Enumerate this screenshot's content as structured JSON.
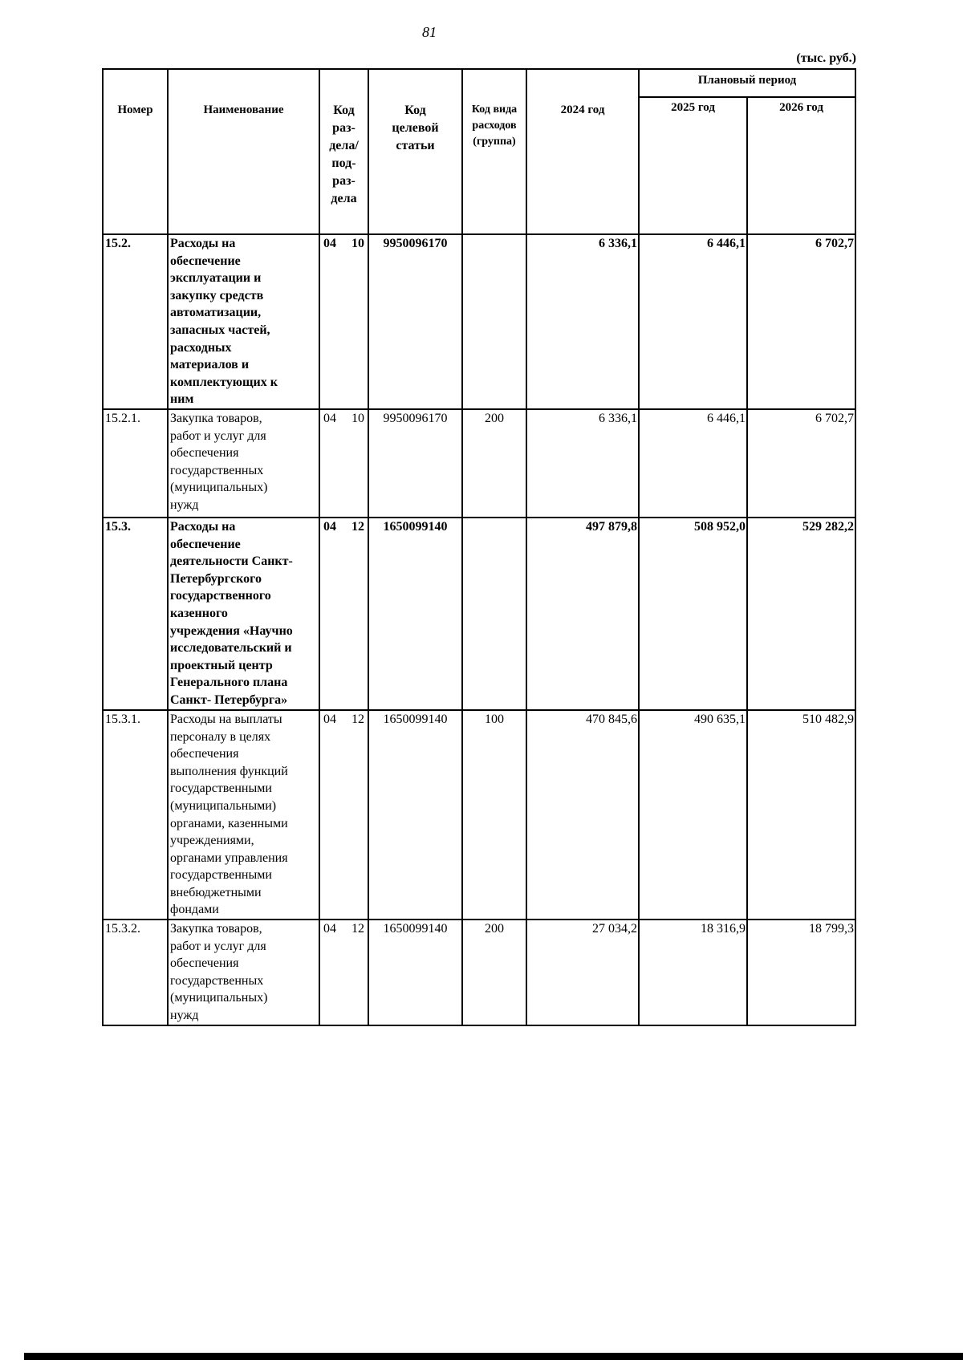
{
  "page_number": "81",
  "units": "(тыс. руб.)",
  "header": {
    "number": "Номер",
    "name": "Наименование",
    "section_code": "Код\nраз-\nдела/\nпод-\nраз-\nдела",
    "target_code": "Код\nцелевой\nстатьи",
    "expense_type": "Код вида\nрасходов\n(группа)",
    "year_2024": "2024 год",
    "planning_period": "Плановый период",
    "year_2025": "2025 год",
    "year_2026": "2026 год"
  },
  "rows": [
    {
      "number": "15.2.",
      "name": "Расходы на\nобеспечение\nэксплуатации и\nзакупку средств\nавтоматизации,\nзапасных частей,\nрасходных\nматериалов и\nкомплектующих к\nним",
      "section": "04",
      "subsection": "10",
      "target": "9950096170",
      "type": "",
      "y2024": "6 336,1",
      "y2025": "6 446,1",
      "y2026": "6 702,7",
      "bold": true
    },
    {
      "number": "15.2.1.",
      "name": "Закупка товаров,\nработ и услуг для\nобеспечения\nгосударственных\n(муниципальных)\nнужд",
      "section": "04",
      "subsection": "10",
      "target": "9950096170",
      "type": "200",
      "y2024": "6 336,1",
      "y2025": "6 446,1",
      "y2026": "6 702,7",
      "bold": false
    },
    {
      "number": "15.3.",
      "name": "Расходы на\nобеспечение\nдеятельности Санкт-\nПетербургского\nгосударственного\nказенного\nучреждения «Научно\nисследовательский и\nпроектный центр\nГенерального плана\nСанкт- Петербурга»",
      "section": "04",
      "subsection": "12",
      "target": "1650099140",
      "type": "",
      "y2024": "497 879,8",
      "y2025": "508 952,0",
      "y2026": "529 282,2",
      "bold": true
    },
    {
      "number": "15.3.1.",
      "name": "Расходы на выплаты\nперсоналу в целях\nобеспечения\nвыполнения функций\nгосударственными\n(муниципальными)\nорганами, казенными\nучреждениями,\nорганами управления\nгосударственными\nвнебюджетными\nфондами",
      "section": "04",
      "subsection": "12",
      "target": "1650099140",
      "type": "100",
      "y2024": "470 845,6",
      "y2025": "490 635,1",
      "y2026": "510 482,9",
      "bold": false
    },
    {
      "number": "15.3.2.",
      "name": "Закупка товаров,\nработ и услуг для\nобеспечения\nгосударственных\n(муниципальных)\nнужд",
      "section": "04",
      "subsection": "12",
      "target": "1650099140",
      "type": "200",
      "y2024": "27 034,2",
      "y2025": "18 316,9",
      "y2026": "18 799,3",
      "bold": false
    }
  ]
}
